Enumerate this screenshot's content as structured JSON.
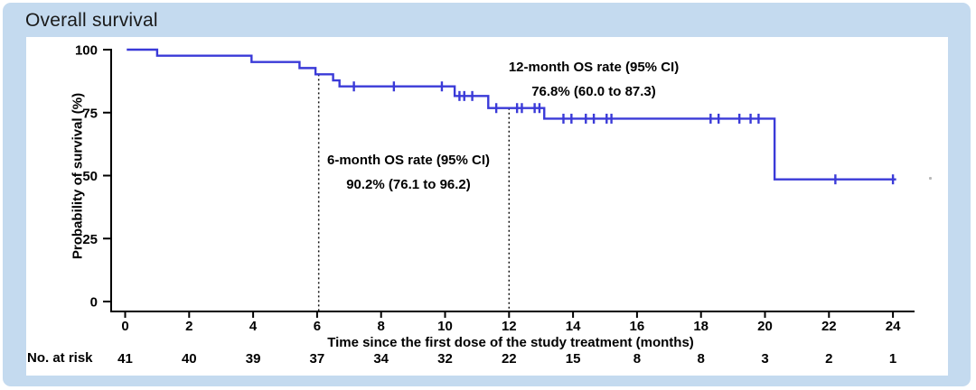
{
  "window": {
    "title": "Overall survival"
  },
  "colors": {
    "frame": "#c4daef",
    "panel": "#ffffff",
    "curve": "#3a3ad8",
    "axis": "#000000"
  },
  "chart_data": {
    "type": "line",
    "subtype": "kaplan-meier-step-curve",
    "title": "Overall survival",
    "xlabel": "Time since the first dose of the study treatment (months)",
    "ylabel": "Probability of survival (%)",
    "xlim": [
      0,
      25.3
    ],
    "ylim": [
      0,
      100
    ],
    "x_ticks": [
      0,
      2,
      4,
      6,
      8,
      10,
      12,
      14,
      16,
      18,
      20,
      22,
      24
    ],
    "y_ticks": [
      0,
      25,
      50,
      75,
      100
    ],
    "grid": false,
    "legend": "none",
    "series": [
      {
        "name": "Overall survival",
        "color": "#3a3ad8",
        "steps": [
          [
            0.05,
            100
          ],
          [
            1.0,
            97.6
          ],
          [
            3.95,
            95.1
          ],
          [
            5.45,
            92.7
          ],
          [
            5.95,
            90.2
          ],
          [
            6.5,
            87.8
          ],
          [
            6.7,
            85.4
          ],
          [
            10.3,
            81.6
          ],
          [
            11.35,
            76.8
          ],
          [
            13.1,
            72.6
          ],
          [
            20.3,
            48.5
          ]
        ],
        "end_time": 24.1,
        "censor_marks": [
          [
            7.15,
            85.4
          ],
          [
            8.4,
            85.4
          ],
          [
            9.9,
            85.4
          ],
          [
            10.45,
            81.6
          ],
          [
            10.6,
            81.6
          ],
          [
            10.85,
            81.6
          ],
          [
            11.6,
            76.8
          ],
          [
            12.25,
            76.8
          ],
          [
            12.4,
            76.8
          ],
          [
            12.8,
            76.8
          ],
          [
            12.95,
            76.8
          ],
          [
            13.7,
            72.6
          ],
          [
            13.95,
            72.6
          ],
          [
            14.4,
            72.6
          ],
          [
            14.65,
            72.6
          ],
          [
            15.05,
            72.6
          ],
          [
            15.2,
            72.6
          ],
          [
            18.3,
            72.6
          ],
          [
            18.55,
            72.6
          ],
          [
            19.2,
            72.6
          ],
          [
            19.55,
            72.6
          ],
          [
            19.8,
            72.6
          ],
          [
            22.2,
            48.5
          ],
          [
            24.0,
            48.5
          ]
        ]
      }
    ],
    "reference_lines": [
      {
        "x": 6.05,
        "top_pct": 90.2,
        "style": "dotted"
      },
      {
        "x": 12.0,
        "top_pct": 76.8,
        "style": "dotted"
      }
    ],
    "annotations": [
      {
        "line1": "6-month OS rate (95% CI)",
        "line2": "90.2% (76.1 to 96.2)"
      },
      {
        "line1": "12-month OS rate (95% CI)",
        "line2": "76.8% (60.0 to 87.3)"
      }
    ],
    "risk_table": {
      "label": "No. at risk",
      "times": [
        0,
        2,
        4,
        6,
        8,
        10,
        12,
        14,
        16,
        18,
        20,
        22,
        24
      ],
      "values": [
        41,
        40,
        39,
        37,
        34,
        32,
        22,
        15,
        8,
        8,
        3,
        2,
        1
      ]
    }
  }
}
